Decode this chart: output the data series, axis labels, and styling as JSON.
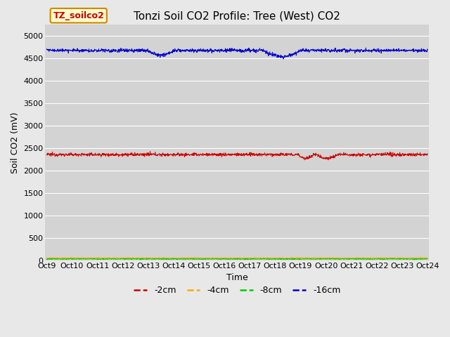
{
  "title": "Tonzi Soil CO2 Profile: Tree (West) CO2",
  "xlabel": "Time",
  "ylabel": "Soil CO2 (mV)",
  "fig_bg_color": "#e8e8e8",
  "plot_bg_color": "#d3d3d3",
  "ylim": [
    0,
    5250
  ],
  "yticks": [
    0,
    500,
    1000,
    1500,
    2000,
    2500,
    3000,
    3500,
    4000,
    4500,
    5000
  ],
  "series": {
    "-2cm": {
      "color": "#cc0000",
      "base": 2360,
      "noise": 18,
      "amp": 8
    },
    "-4cm": {
      "color": "#ffaa00",
      "base": 55,
      "noise": 6,
      "amp": 3
    },
    "-8cm": {
      "color": "#00cc00",
      "base": 35,
      "noise": 5,
      "amp": 2
    },
    "-16cm": {
      "color": "#0000cc",
      "base": 4680,
      "noise": 20,
      "amp": 10
    }
  },
  "n_points": 1440,
  "xtick_labels": [
    "Oct 9",
    "Oct 10",
    "Oct 11",
    "Oct 12",
    "Oct 13",
    "Oct 14",
    "Oct 15",
    "Oct 16",
    "Oct 17",
    "Oct 18",
    "Oct 19",
    "Oct 20",
    "Oct 21",
    "Oct 22",
    "Oct 23",
    "Oct 24"
  ],
  "legend_label": "TZ_soilco2",
  "legend_bg": "#ffffcc",
  "legend_border": "#cc8800",
  "title_fontsize": 11,
  "axis_label_fontsize": 9,
  "tick_fontsize": 8,
  "legend_fontsize": 9,
  "grid_color": "#ffffff",
  "grid_linewidth": 0.8,
  "line_linewidth": 0.7
}
